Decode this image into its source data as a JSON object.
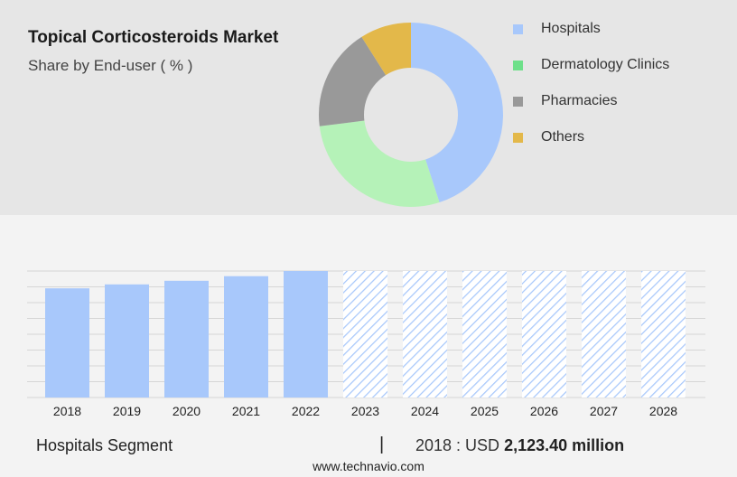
{
  "header": {
    "title": "Topical Corticosteroids Market",
    "subtitle": "Share by End-user ( % )"
  },
  "colors": {
    "hospitals": "#a8c8fb",
    "dermatology_clinics": "#b5f2b8",
    "pharmacies": "#999999",
    "others": "#e3b84a",
    "legend_hospitals": "#a8c8fb",
    "legend_dermatology_clinics": "#6ee08a",
    "legend_pharmacies": "#999999",
    "legend_others": "#e3b84a",
    "bar": "#a8c8fb",
    "forecast_hatch": "#a8c8fb"
  },
  "legend": [
    {
      "label": "Hospitals",
      "color_key": "legend_hospitals"
    },
    {
      "label": "Dermatology Clinics",
      "color_key": "legend_dermatology_clinics"
    },
    {
      "label": "Pharmacies",
      "color_key": "legend_pharmacies"
    },
    {
      "label": "Others",
      "color_key": "legend_others"
    }
  ],
  "chart_data": [
    {
      "type": "pie",
      "variant": "donut",
      "title": "Topical Corticosteroids Market",
      "subtitle": "Share by End-user ( % )",
      "slices": [
        {
          "label": "Hospitals",
          "value": 45,
          "color_key": "hospitals"
        },
        {
          "label": "Dermatology Clinics",
          "value": 28,
          "color_key": "dermatology_clinics"
        },
        {
          "label": "Pharmacies",
          "value": 18,
          "color_key": "pharmacies"
        },
        {
          "label": "Others",
          "value": 9,
          "color_key": "others"
        }
      ],
      "legend_position": "right"
    },
    {
      "type": "bar",
      "categories": [
        "2018",
        "2019",
        "2020",
        "2021",
        "2022",
        "2023",
        "2024",
        "2025",
        "2026",
        "2027",
        "2028"
      ],
      "values": [
        2123.4,
        2200,
        2270,
        2360,
        2460,
        2460,
        2460,
        2460,
        2460,
        2460,
        2460
      ],
      "forecast_from": "2023",
      "ylim": [
        0,
        2460
      ],
      "grid": true,
      "xlabel": "",
      "ylabel": ""
    }
  ],
  "footer": {
    "segment": "Hospitals Segment",
    "separator": "|",
    "year_label": "2018 : USD",
    "value": "2,123.40 million",
    "source": "www.technavio.com"
  }
}
